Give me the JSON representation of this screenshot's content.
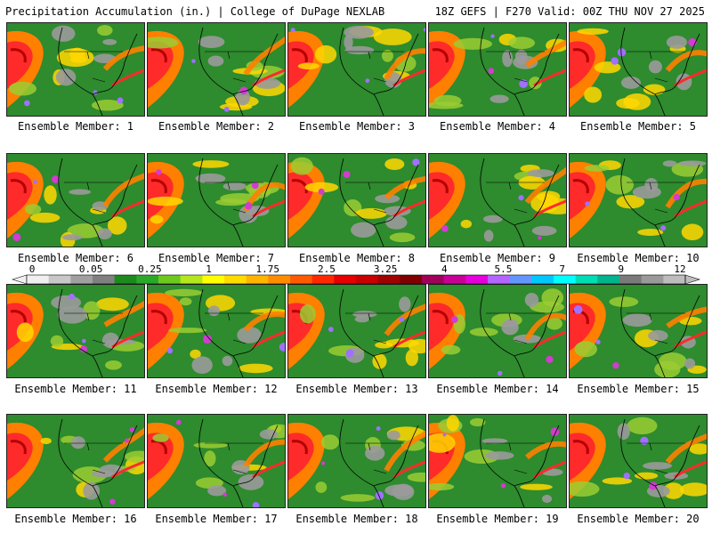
{
  "header": {
    "title": "Precipitation Accumulation (in.) | College of DuPage NEXLAB",
    "run": "18Z GEFS | F270 Valid: 00Z THU NOV 27 2025"
  },
  "members": [
    {
      "id": 1,
      "label": "Ensemble Member: 1"
    },
    {
      "id": 2,
      "label": "Ensemble Member: 2"
    },
    {
      "id": 3,
      "label": "Ensemble Member: 3"
    },
    {
      "id": 4,
      "label": "Ensemble Member: 4"
    },
    {
      "id": 5,
      "label": "Ensemble Member: 5"
    },
    {
      "id": 6,
      "label": "Ensemble Member: 6"
    },
    {
      "id": 7,
      "label": "Ensemble Member: 7"
    },
    {
      "id": 8,
      "label": "Ensemble Member: 8"
    },
    {
      "id": 9,
      "label": "Ensemble Member: 9"
    },
    {
      "id": 10,
      "label": "Ensemble Member: 10"
    },
    {
      "id": 11,
      "label": "Ensemble Member: 11"
    },
    {
      "id": 12,
      "label": "Ensemble Member: 12"
    },
    {
      "id": 13,
      "label": "Ensemble Member: 13"
    },
    {
      "id": 14,
      "label": "Ensemble Member: 14"
    },
    {
      "id": 15,
      "label": "Ensemble Member: 15"
    },
    {
      "id": 16,
      "label": "Ensemble Member: 16"
    },
    {
      "id": 17,
      "label": "Ensemble Member: 17"
    },
    {
      "id": 18,
      "label": "Ensemble Member: 18"
    },
    {
      "id": 19,
      "label": "Ensemble Member: 19"
    },
    {
      "id": 20,
      "label": "Ensemble Member: 20"
    }
  ],
  "colorbar": {
    "unit": "in.",
    "tick_labels": [
      "0",
      "0.05",
      "0.25",
      "1",
      "1.75",
      "2.5",
      "3.25",
      "4",
      "5.5",
      "7",
      "9",
      "12"
    ],
    "colors": [
      "#f0f0f0",
      "#c8c8c8",
      "#a0a0a0",
      "#808080",
      "#1c8a1c",
      "#2aa82a",
      "#6ec81e",
      "#b4e61e",
      "#ffff00",
      "#ffdc00",
      "#ffb400",
      "#ff8c00",
      "#ff5a00",
      "#ff2800",
      "#e60000",
      "#c80000",
      "#a00000",
      "#800000",
      "#a0005a",
      "#c80096",
      "#e600dc",
      "#b464ff",
      "#6496ff",
      "#00c8ff",
      "#00ffff",
      "#00dcb4",
      "#00b48c",
      "#7a7a7a",
      "#9a9a9a",
      "#bdbdbd"
    ]
  },
  "map_colors": {
    "land": "#2e8b2e",
    "dry_gray": "#9a9a9a",
    "light_green": "#9acd32",
    "yellow": "#ffd700",
    "orange": "#ff7f00",
    "red": "#ff2a2a",
    "dark_red": "#b20000",
    "magenta": "#d23cd2",
    "lavender": "#a070ff"
  }
}
